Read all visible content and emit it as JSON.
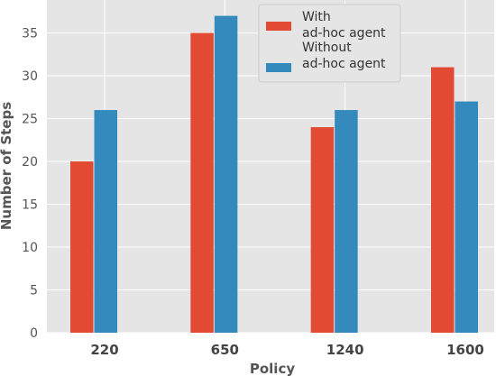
{
  "chart_data": {
    "type": "bar",
    "xlabel": "Policy",
    "ylabel": "Number of Steps",
    "categories": [
      "220",
      "650",
      "1240",
      "1600"
    ],
    "series": [
      {
        "name": [
          "With",
          "ad-hoc agent"
        ],
        "values": [
          20,
          35,
          24,
          31
        ],
        "color": "#e24a33"
      },
      {
        "name": [
          "Without",
          "ad-hoc agent"
        ],
        "values": [
          26,
          37,
          26,
          27
        ],
        "color": "#348abd"
      }
    ],
    "ylim": [
      0,
      38.85
    ],
    "yticks": [
      0,
      5,
      10,
      15,
      20,
      25,
      30,
      35
    ],
    "grid": true,
    "legend_position": "top-right",
    "background": "#e5e5e5",
    "grid_color": "#ffffff"
  }
}
